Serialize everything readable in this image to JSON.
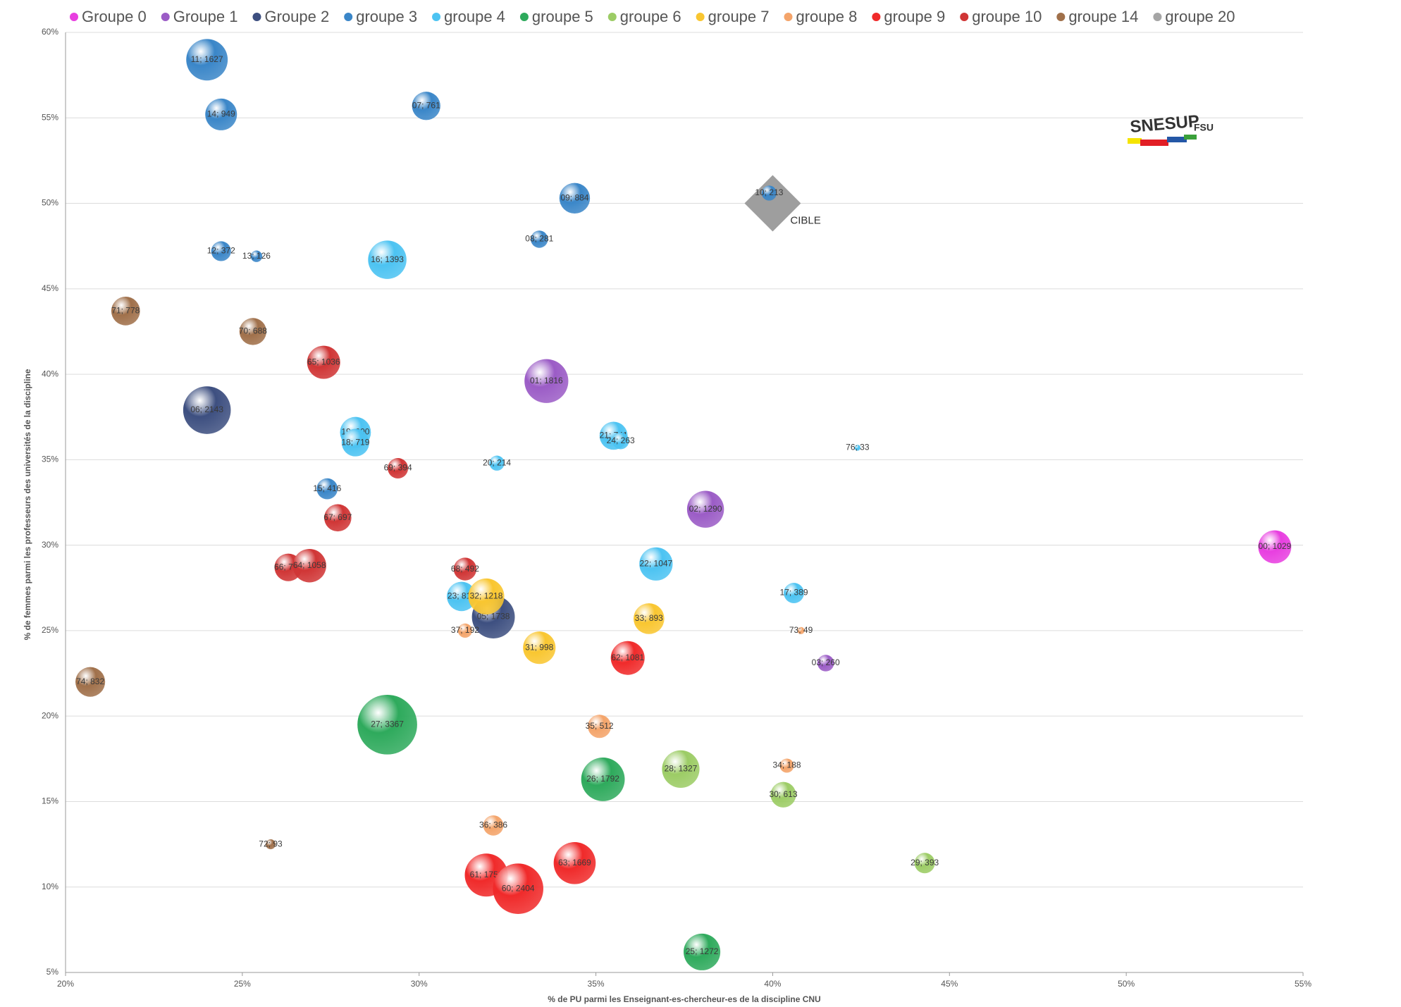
{
  "chart_data": {
    "type": "bubble",
    "x_label": "% de PU parmi les Enseignant-es-chercheur-es de la discipline CNU",
    "y_label": "% de femmes parmi les professeurs des universités de la discipline",
    "xlim": [
      20,
      55
    ],
    "ylim": [
      5,
      60
    ],
    "xticks": [
      {
        "value": 20,
        "label": "20%"
      },
      {
        "value": 25,
        "label": "25%"
      },
      {
        "value": 30,
        "label": "30%"
      },
      {
        "value": 35,
        "label": "35%"
      },
      {
        "value": 40,
        "label": "40%"
      },
      {
        "value": 45,
        "label": "45%"
      },
      {
        "value": 50,
        "label": "50%"
      },
      {
        "value": 55,
        "label": "55%"
      }
    ],
    "yticks": [
      {
        "value": 5,
        "label": "5%"
      },
      {
        "value": 10,
        "label": "10%"
      },
      {
        "value": 15,
        "label": "15%"
      },
      {
        "value": 20,
        "label": "20%"
      },
      {
        "value": 25,
        "label": "25%"
      },
      {
        "value": 30,
        "label": "30%"
      },
      {
        "value": 35,
        "label": "35%"
      },
      {
        "value": 40,
        "label": "40%"
      },
      {
        "value": 45,
        "label": "45%"
      },
      {
        "value": 50,
        "label": "50%"
      },
      {
        "value": 55,
        "label": "55%"
      },
      {
        "value": 60,
        "label": "60%"
      }
    ],
    "grid": true,
    "legend": "top",
    "annotation": {
      "text": "CIBLE",
      "x": 40,
      "y": 50,
      "color": "#9e9e9e"
    },
    "logo": {
      "text": "SNESUP",
      "sub": "FSU"
    },
    "series": [
      {
        "name": "Groupe 0",
        "color": "#e83ee0",
        "x": [
          54.2
        ],
        "values": [
          29.9
        ],
        "sizes": [
          1029
        ],
        "labels": [
          "00; 1029"
        ]
      },
      {
        "name": "Groupe 1",
        "color": "#9b5cc6",
        "x": [
          33.6,
          38.1,
          41.5
        ],
        "values": [
          39.6,
          32.1,
          23.1
        ],
        "sizes": [
          1816,
          1290,
          260
        ],
        "labels": [
          "01; 1816",
          "02; 1290",
          "03; 260"
        ]
      },
      {
        "name": "Groupe 2",
        "color": "#3d4f80",
        "x": [
          24.0,
          32.1
        ],
        "values": [
          37.9,
          25.8
        ],
        "sizes": [
          2143,
          1738
        ],
        "labels": [
          "06; 2143",
          "05; 1738"
        ]
      },
      {
        "name": "groupe 3",
        "color": "#3a86c8",
        "x": [
          24.0,
          24.4,
          30.2,
          34.4,
          33.4,
          39.9,
          24.4,
          25.4,
          27.4
        ],
        "values": [
          58.4,
          55.2,
          55.7,
          50.3,
          47.9,
          50.6,
          47.2,
          46.9,
          33.3
        ],
        "sizes": [
          1627,
          949,
          761,
          884,
          281,
          213,
          372,
          126,
          416
        ],
        "labels": [
          "11; 1627",
          "14; 949",
          "07; 761",
          "09; 884",
          "08; 281",
          "10; 213",
          "12; 372",
          "13; 126",
          "15; 416"
        ]
      },
      {
        "name": "groupe 4",
        "color": "#4cc3f2",
        "x": [
          29.1,
          28.2,
          28.2,
          32.2,
          35.5,
          35.7,
          36.7,
          40.6,
          31.2,
          42.4
        ],
        "values": [
          46.7,
          36.6,
          36.0,
          34.8,
          36.4,
          36.1,
          28.9,
          27.2,
          27.0,
          35.7
        ],
        "sizes": [
          1393,
          900,
          719,
          214,
          741,
          263,
          1047,
          389,
          812,
          33
        ],
        "labels": [
          "16; 1393",
          "19; 900",
          "18; 719",
          "20; 214",
          "21; 741",
          "24; 263",
          "22; 1047",
          "17; 389",
          "23; 812",
          "76; 33"
        ]
      },
      {
        "name": "groupe 5",
        "color": "#2eaa5c",
        "x": [
          29.1,
          35.2,
          38.0
        ],
        "values": [
          19.5,
          16.3,
          6.2
        ],
        "sizes": [
          3367,
          1792,
          1272
        ],
        "labels": [
          "27; 3367",
          "26; 1792",
          "25; 1272"
        ]
      },
      {
        "name": "groupe 6",
        "color": "#9ccc65",
        "x": [
          37.4,
          40.3,
          44.3
        ],
        "values": [
          16.9,
          15.4,
          11.4
        ],
        "sizes": [
          1327,
          613,
          393
        ],
        "labels": [
          "28; 1327",
          "30; 613",
          "29; 393"
        ]
      },
      {
        "name": "groupe 7",
        "color": "#f9c630",
        "x": [
          31.9,
          36.5,
          33.4
        ],
        "values": [
          27.0,
          25.7,
          24.0
        ],
        "sizes": [
          1218,
          893,
          998
        ],
        "labels": [
          "32; 1218",
          "33; 893",
          "31; 998"
        ]
      },
      {
        "name": "groupe 8",
        "color": "#f4a46a",
        "x": [
          31.3,
          35.1,
          40.4,
          32.1,
          40.8
        ],
        "values": [
          25.0,
          19.4,
          17.1,
          13.6,
          25.0
        ],
        "sizes": [
          192,
          512,
          188,
          386,
          49
        ],
        "labels": [
          "37; 192",
          "35; 512",
          "34; 188",
          "36; 386",
          "73; 49"
        ]
      },
      {
        "name": "groupe 9",
        "color": "#f02a2a",
        "x": [
          35.9,
          34.4,
          31.9,
          32.8
        ],
        "values": [
          23.4,
          11.4,
          10.7,
          9.9
        ],
        "sizes": [
          1081,
          1669,
          1750,
          2404
        ],
        "labels": [
          "62; 1081",
          "63; 1669",
          "61; 1750",
          "60; 2404"
        ]
      },
      {
        "name": "groupe 10",
        "color": "#d03535",
        "x": [
          27.3,
          29.4,
          27.7,
          26.3,
          26.9,
          31.3
        ],
        "values": [
          40.7,
          34.5,
          31.6,
          28.7,
          28.8,
          28.6
        ],
        "sizes": [
          1036,
          394,
          697,
          719,
          1058,
          492
        ],
        "labels": [
          "65; 1036",
          "69; 394",
          "67; 697",
          "66; 719",
          "64; 1058",
          "68; 492"
        ]
      },
      {
        "name": "groupe 14",
        "color": "#a0704a",
        "x": [
          21.7,
          25.3,
          20.7,
          25.8
        ],
        "values": [
          43.7,
          42.5,
          22.0,
          12.5
        ],
        "sizes": [
          778,
          688,
          832,
          93
        ],
        "labels": [
          "71; 778",
          "70; 688",
          "74; 832",
          "72; 93"
        ]
      },
      {
        "name": "groupe 20",
        "color": "#a5a5a5",
        "x": [],
        "values": [],
        "sizes": [],
        "labels": []
      }
    ]
  }
}
